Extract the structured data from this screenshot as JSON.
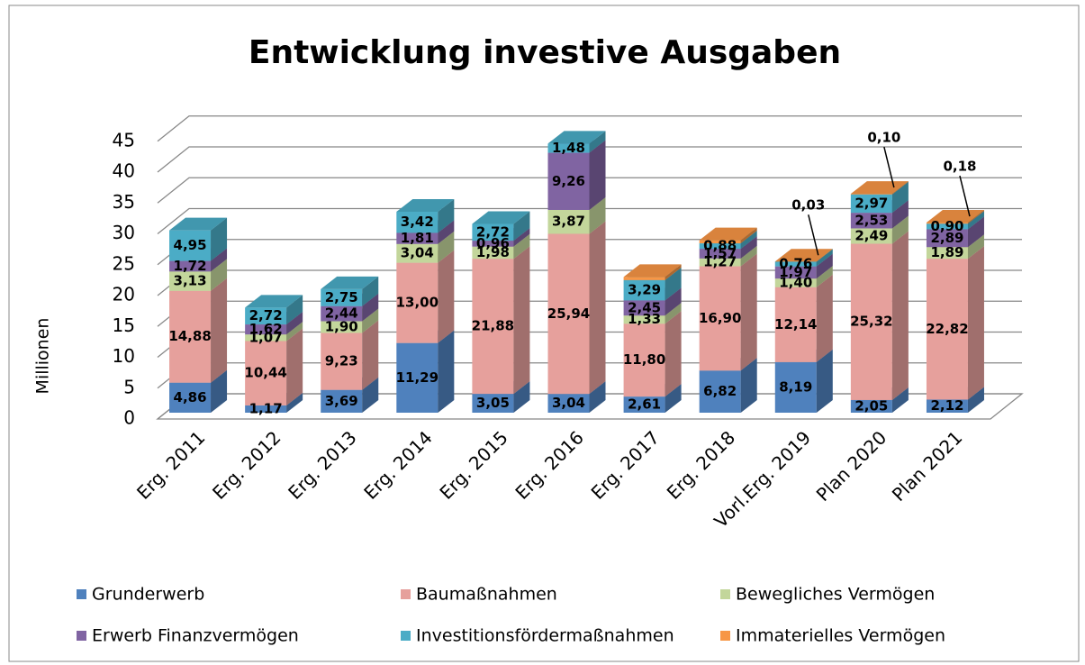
{
  "chart_data": {
    "type": "bar3d_stacked",
    "title": "Entwicklung investive Ausgaben",
    "y_label": "Millionen",
    "categories": [
      "Erg. 2011",
      "Erg. 2012",
      "Erg. 2013",
      "Erg. 2014",
      "Erg. 2015",
      "Erg. 2016",
      "Erg. 2017",
      "Erg. 2018",
      "Vorl.Erg. 2019",
      "Plan 2020",
      "Plan 2021"
    ],
    "ylim": [
      0,
      45
    ],
    "yticks": [
      0,
      5,
      10,
      15,
      20,
      25,
      30,
      35,
      40,
      45
    ],
    "grid": true,
    "legend": "bottom",
    "series": [
      {
        "name": "Grunderwerb",
        "color": "#4f81bd",
        "values": [
          4.86,
          1.17,
          3.69,
          11.29,
          3.05,
          3.04,
          2.61,
          6.82,
          8.19,
          2.05,
          2.12
        ],
        "value_labels": [
          "4,86",
          "1,17",
          "3,69",
          "11,29",
          "3,05",
          "3,04",
          "2,61",
          "6,82",
          "8,19",
          "2,05",
          "2,12"
        ]
      },
      {
        "name": "Baumaßnahmen",
        "color": "#e6a09c",
        "values": [
          14.88,
          10.44,
          9.23,
          13.0,
          21.88,
          25.94,
          11.8,
          16.9,
          12.14,
          25.32,
          22.82
        ],
        "value_labels": [
          "14,88",
          "10,44",
          "9,23",
          "13,00",
          "21,88",
          "25,94",
          "11,80",
          "16,90",
          "12,14",
          "25,32",
          "22,82"
        ]
      },
      {
        "name": "Bewegliches Vermögen",
        "color": "#c3d69b",
        "values": [
          3.13,
          1.07,
          1.9,
          3.04,
          1.98,
          3.87,
          1.33,
          1.27,
          1.4,
          2.49,
          1.89
        ],
        "value_labels": [
          "3,13",
          "1,07",
          "1,90",
          "3,04",
          "1,98",
          "3,87",
          "1,33",
          "1,27",
          "1,40",
          "2,49",
          "1,89"
        ]
      },
      {
        "name": "Erwerb Finanzvermögen",
        "color": "#8064a2",
        "values": [
          1.72,
          1.62,
          2.44,
          1.81,
          0.96,
          9.26,
          2.45,
          1.57,
          1.97,
          2.53,
          2.89
        ],
        "value_labels": [
          "1,72",
          "1,62",
          "2,44",
          "1,81",
          "0,96",
          "9,26",
          "2,45",
          "1,57",
          "1,97",
          "2,53",
          "2,89"
        ]
      },
      {
        "name": "Investitionsfördermaßnahmen",
        "color": "#4bacc6",
        "values": [
          4.95,
          2.72,
          2.75,
          3.42,
          2.72,
          1.48,
          3.29,
          0.88,
          0.76,
          2.97,
          0.9
        ],
        "value_labels": [
          "4,95",
          "2,72",
          "2,75",
          "3,42",
          "2,72",
          "1,48",
          "3,29",
          "0,88",
          "0,76",
          "2,97",
          "0,90"
        ]
      },
      {
        "name": "Immaterielles Vermögen",
        "color": "#f79646",
        "values": [
          null,
          null,
          null,
          null,
          null,
          null,
          0.5,
          0.5,
          0.03,
          0.1,
          0.18
        ],
        "value_labels": [
          null,
          null,
          null,
          null,
          null,
          null,
          null,
          null,
          "0,03",
          "0,10",
          "0,18"
        ]
      }
    ]
  }
}
